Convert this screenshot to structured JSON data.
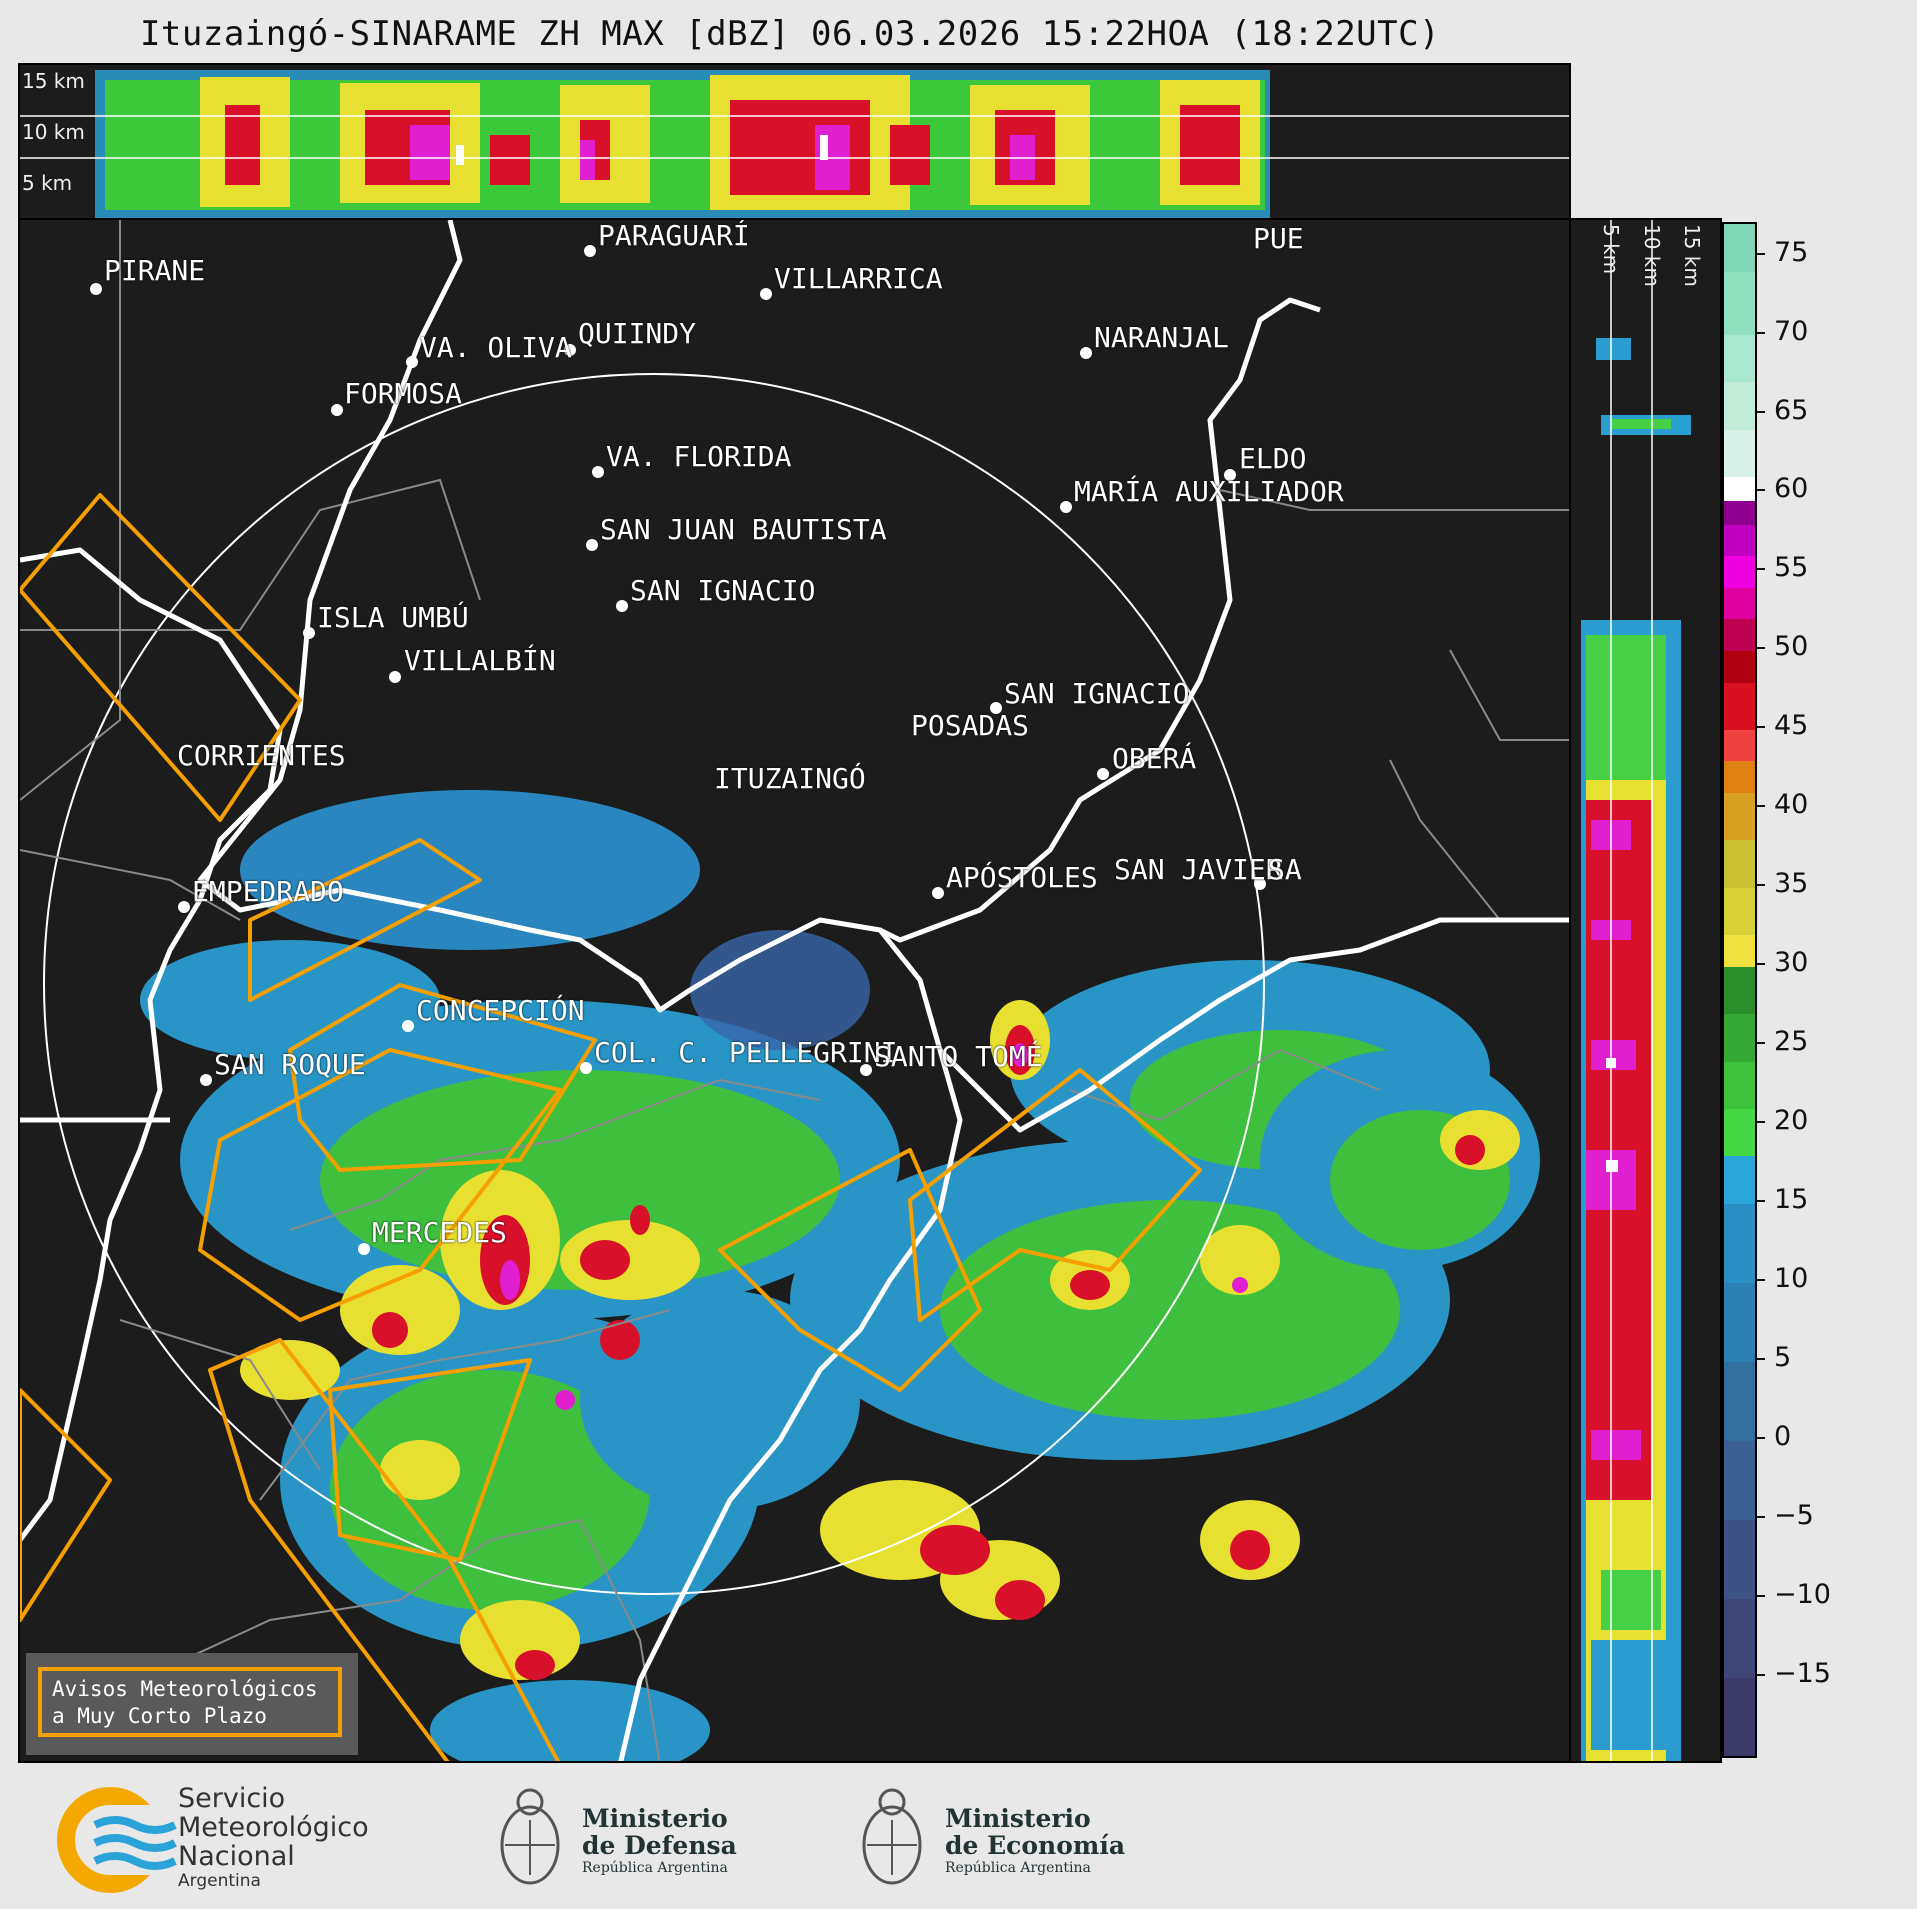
{
  "title": "Ituzaingó-SINARAME ZH MAX [dBZ] 06.03.2026 15:22HOA (18:22UTC)",
  "top_panel": {
    "height_labels": [
      "15 km",
      "10 km",
      "5 km"
    ]
  },
  "side_panel": {
    "height_labels": [
      "5 km",
      "10 km",
      "15 km"
    ]
  },
  "colorbar": {
    "ticks": [
      "75",
      "70",
      "65",
      "60",
      "55",
      "50",
      "45",
      "40",
      "35",
      "30",
      "25",
      "20",
      "15",
      "10",
      "5",
      "0",
      "−5",
      "−10",
      "−15"
    ],
    "range": [
      -20,
      77
    ]
  },
  "cities": {
    "pirane": "PIRANE",
    "paraguari": "PARAGUARÍ",
    "villarrica": "VILLARRICA",
    "pue": "PUE",
    "va_oliva": "VA. OLIVA",
    "quiindy": "QUIINDY",
    "naranjal": "NARANJAL",
    "formosa": "FORMOSA",
    "va_florida": "VA. FLORIDA",
    "eldo": "ELDO",
    "maria_aux": "MARÍA AUXILIADOR",
    "san_juan": "SAN JUAN BAUTISTA",
    "san_ignacio_py": "SAN IGNACIO",
    "isla_umbu": "ISLA UMBÚ",
    "villalbin": "VILLALBÍN",
    "san_ignacio_ar": "SAN IGNACIO",
    "posadas": "POSADAS",
    "corrientes": "CORRIENTES",
    "ituzaingo": "ITUZAINGÓ",
    "obera": "OBERÁ",
    "apostoles": "APÓSTOLES",
    "san_javier": "SAN JAVIER",
    "sa": "SA",
    "empedrado": "EMPEDRADO",
    "concepcion": "CONCEPCIÓN",
    "col_pellegrini": "COL. C. PELLEGRINI",
    "santo_tome": "SANTO TOMÉ",
    "san_roque": "SAN ROQUE",
    "mercedes": "MERCEDES"
  },
  "legend": {
    "line1": "Avisos Meteorológicos",
    "line2": "a Muy Corto Plazo"
  },
  "footer": {
    "smn": {
      "line1": "Servicio",
      "line2": "Meteorológico",
      "line3": "Nacional",
      "line4": "Argentina"
    },
    "defensa": {
      "line1": "Ministerio",
      "line2": "de Defensa",
      "line3": "República Argentina"
    },
    "economia": {
      "line1": "Ministerio",
      "line2": "de Economía",
      "line3": "República Argentina"
    }
  },
  "colors": {
    "background": "#1c1c1c",
    "warning_polygon": "#f5a000",
    "border": "#ffffff",
    "province_line": "#8a8a8a",
    "smn_orange": "#f5a800",
    "smn_blue": "#2aa3d8"
  }
}
